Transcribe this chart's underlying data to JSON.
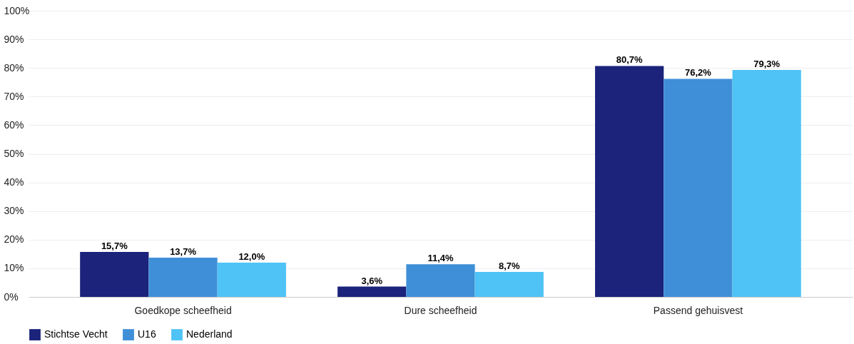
{
  "chart_data": {
    "type": "bar",
    "categories": [
      "Goedkope scheefheid",
      "Dure scheefheid",
      "Passend gehuisvest"
    ],
    "series": [
      {
        "name": "Stichtse Vecht",
        "color": "#1b237b",
        "values": [
          15.7,
          3.6,
          80.7
        ],
        "value_labels": [
          "15,7%",
          "3,6%",
          "80,7%"
        ]
      },
      {
        "name": "U16",
        "color": "#3f8fd8",
        "values": [
          13.7,
          11.4,
          76.2
        ],
        "value_labels": [
          "13,7%",
          "11,4%",
          "76,2%"
        ]
      },
      {
        "name": "Nederland",
        "color": "#4fc3f5",
        "values": [
          12.0,
          8.7,
          79.3
        ],
        "value_labels": [
          "12,0%",
          "8,7%",
          "79,3%"
        ]
      }
    ],
    "ylim": [
      0,
      100
    ],
    "yticks": [
      {
        "value": 0,
        "label": "0%"
      },
      {
        "value": 10,
        "label": "10%"
      },
      {
        "value": 20,
        "label": "20%"
      },
      {
        "value": 30,
        "label": "30%"
      },
      {
        "value": 40,
        "label": "40%"
      },
      {
        "value": 50,
        "label": "50%"
      },
      {
        "value": 60,
        "label": "60%"
      },
      {
        "value": 70,
        "label": "70%"
      },
      {
        "value": 80,
        "label": "80%"
      },
      {
        "value": 90,
        "label": "90%"
      },
      {
        "value": 100,
        "label": "100%"
      }
    ],
    "grid": "y",
    "legend": "bottom"
  }
}
